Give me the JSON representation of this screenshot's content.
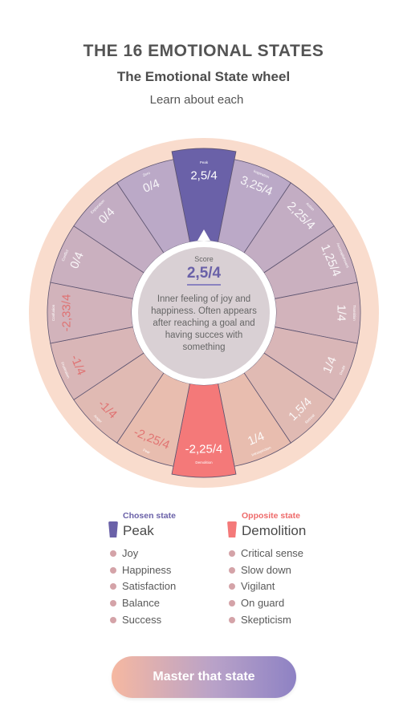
{
  "header": {
    "title": "THE 16 EMOTIONAL STATES",
    "subtitle": "The Emotional State wheel",
    "learn_link": "Learn about each"
  },
  "wheel": {
    "segments": [
      {
        "name": "Peak",
        "score": "2,5/4"
      },
      {
        "name": "Inspiration",
        "score": "3,25/4"
      },
      {
        "name": "Action",
        "score": "2,25/4"
      },
      {
        "name": "Accomplishment",
        "score": "1,25/4"
      },
      {
        "name": "Transition",
        "score": "1/4"
      },
      {
        "name": "Doubt",
        "score": "1/4"
      },
      {
        "name": "Retreat",
        "score": "1,5/4"
      },
      {
        "name": "Introspection",
        "score": "1/4"
      },
      {
        "name": "Demolition",
        "score": "-2,25/4"
      },
      {
        "name": "Fear",
        "score": "-2,25/4"
      },
      {
        "name": "Anger",
        "score": "-1/4"
      },
      {
        "name": "Frustration",
        "score": "-1/4"
      },
      {
        "name": "Confusion",
        "score": "-2,33/4"
      },
      {
        "name": "Conflict",
        "score": "0/4"
      },
      {
        "name": "Exploration",
        "score": "0/4"
      },
      {
        "name": "Zero",
        "score": "0/4"
      }
    ],
    "score_label": "Score",
    "score_value": "2,5/4",
    "description": "Inner feeling of joy and happiness. Often appears after reaching a goal and having succes with something"
  },
  "chosen": {
    "kicker": "Chosen state",
    "name": "Peak",
    "color": "#6a61a8",
    "traits": [
      "Joy",
      "Happiness",
      "Satisfaction",
      "Balance",
      "Success"
    ]
  },
  "opposite": {
    "kicker": "Opposite state",
    "name": "Demolition",
    "color": "#ee6a6a",
    "traits": [
      "Critical sense",
      "Slow down",
      "Vigilant",
      "On guard",
      "Skepticism"
    ]
  },
  "cta": {
    "label": "Master that state"
  },
  "colors": {
    "dot": "#d4a3a8",
    "rim": "#f9dccd",
    "peak": "#6a61a8",
    "demolition": "#f47979"
  }
}
